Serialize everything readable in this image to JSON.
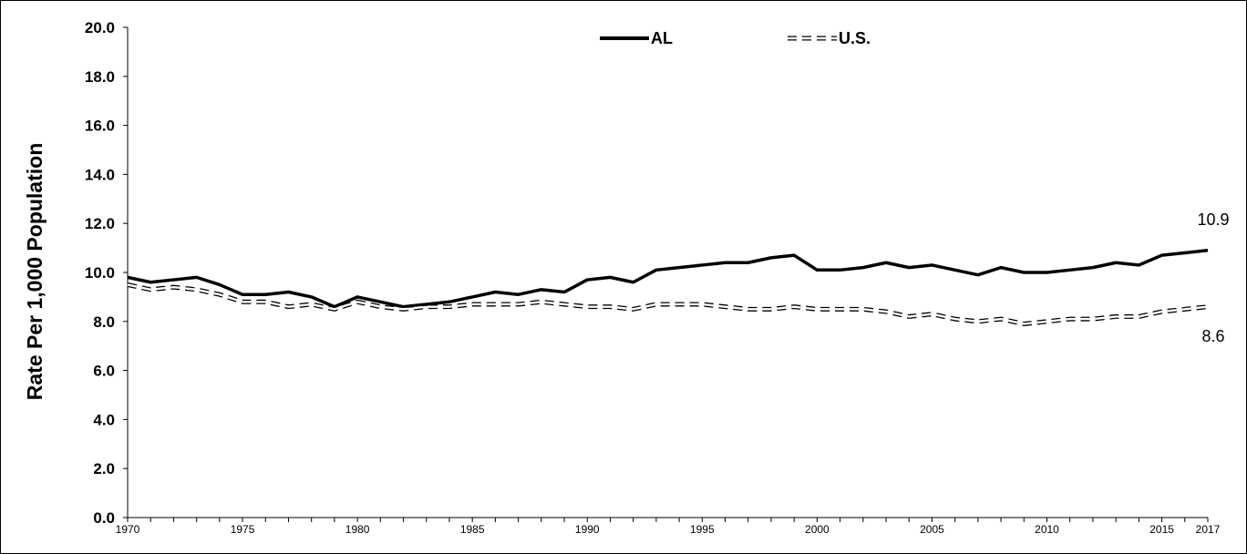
{
  "chart_data": {
    "type": "line",
    "title": "",
    "xlabel": "",
    "ylabel": "Rate Per 1,000 Population",
    "ylim": [
      0,
      20
    ],
    "yticks": [
      "0.0",
      "2.0",
      "4.0",
      "6.0",
      "8.0",
      "10.0",
      "12.0",
      "14.0",
      "16.0",
      "18.0",
      "20.0"
    ],
    "xtick_labels": [
      "1970",
      "1975",
      "1980",
      "1985",
      "1990",
      "1995",
      "2000",
      "2005",
      "2010",
      "2015",
      "2017"
    ],
    "x": [
      1970,
      1971,
      1972,
      1973,
      1974,
      1975,
      1976,
      1977,
      1978,
      1979,
      1980,
      1981,
      1982,
      1983,
      1984,
      1985,
      1986,
      1987,
      1988,
      1989,
      1990,
      1991,
      1992,
      1993,
      1994,
      1995,
      1996,
      1997,
      1998,
      1999,
      2000,
      2001,
      2002,
      2003,
      2004,
      2005,
      2006,
      2007,
      2008,
      2009,
      2010,
      2011,
      2012,
      2013,
      2014,
      2015,
      2016,
      2017
    ],
    "series": [
      {
        "name": "AL",
        "style": "solid",
        "color": "#000000",
        "values": [
          9.8,
          9.6,
          9.7,
          9.8,
          9.5,
          9.1,
          9.1,
          9.2,
          9.0,
          8.6,
          9.0,
          8.8,
          8.6,
          8.7,
          8.8,
          9.0,
          9.2,
          9.1,
          9.3,
          9.2,
          9.7,
          9.8,
          9.6,
          10.1,
          10.2,
          10.3,
          10.4,
          10.4,
          10.6,
          10.7,
          10.1,
          10.1,
          10.2,
          10.4,
          10.2,
          10.3,
          10.1,
          9.9,
          10.2,
          10.0,
          10.0,
          10.1,
          10.2,
          10.4,
          10.3,
          10.7,
          10.8,
          10.9
        ],
        "end_label": "10.9"
      },
      {
        "name": "U.S.",
        "style": "dashed",
        "color": "#000000",
        "values": [
          9.5,
          9.3,
          9.4,
          9.3,
          9.1,
          8.8,
          8.8,
          8.6,
          8.7,
          8.5,
          8.8,
          8.6,
          8.5,
          8.6,
          8.6,
          8.7,
          8.7,
          8.7,
          8.8,
          8.7,
          8.6,
          8.6,
          8.5,
          8.7,
          8.7,
          8.7,
          8.6,
          8.5,
          8.5,
          8.6,
          8.5,
          8.5,
          8.5,
          8.4,
          8.2,
          8.3,
          8.1,
          8.0,
          8.1,
          7.9,
          8.0,
          8.1,
          8.1,
          8.2,
          8.2,
          8.4,
          8.5,
          8.6
        ],
        "end_label": "8.6"
      }
    ],
    "grid": false,
    "legend_position": "top-center"
  }
}
